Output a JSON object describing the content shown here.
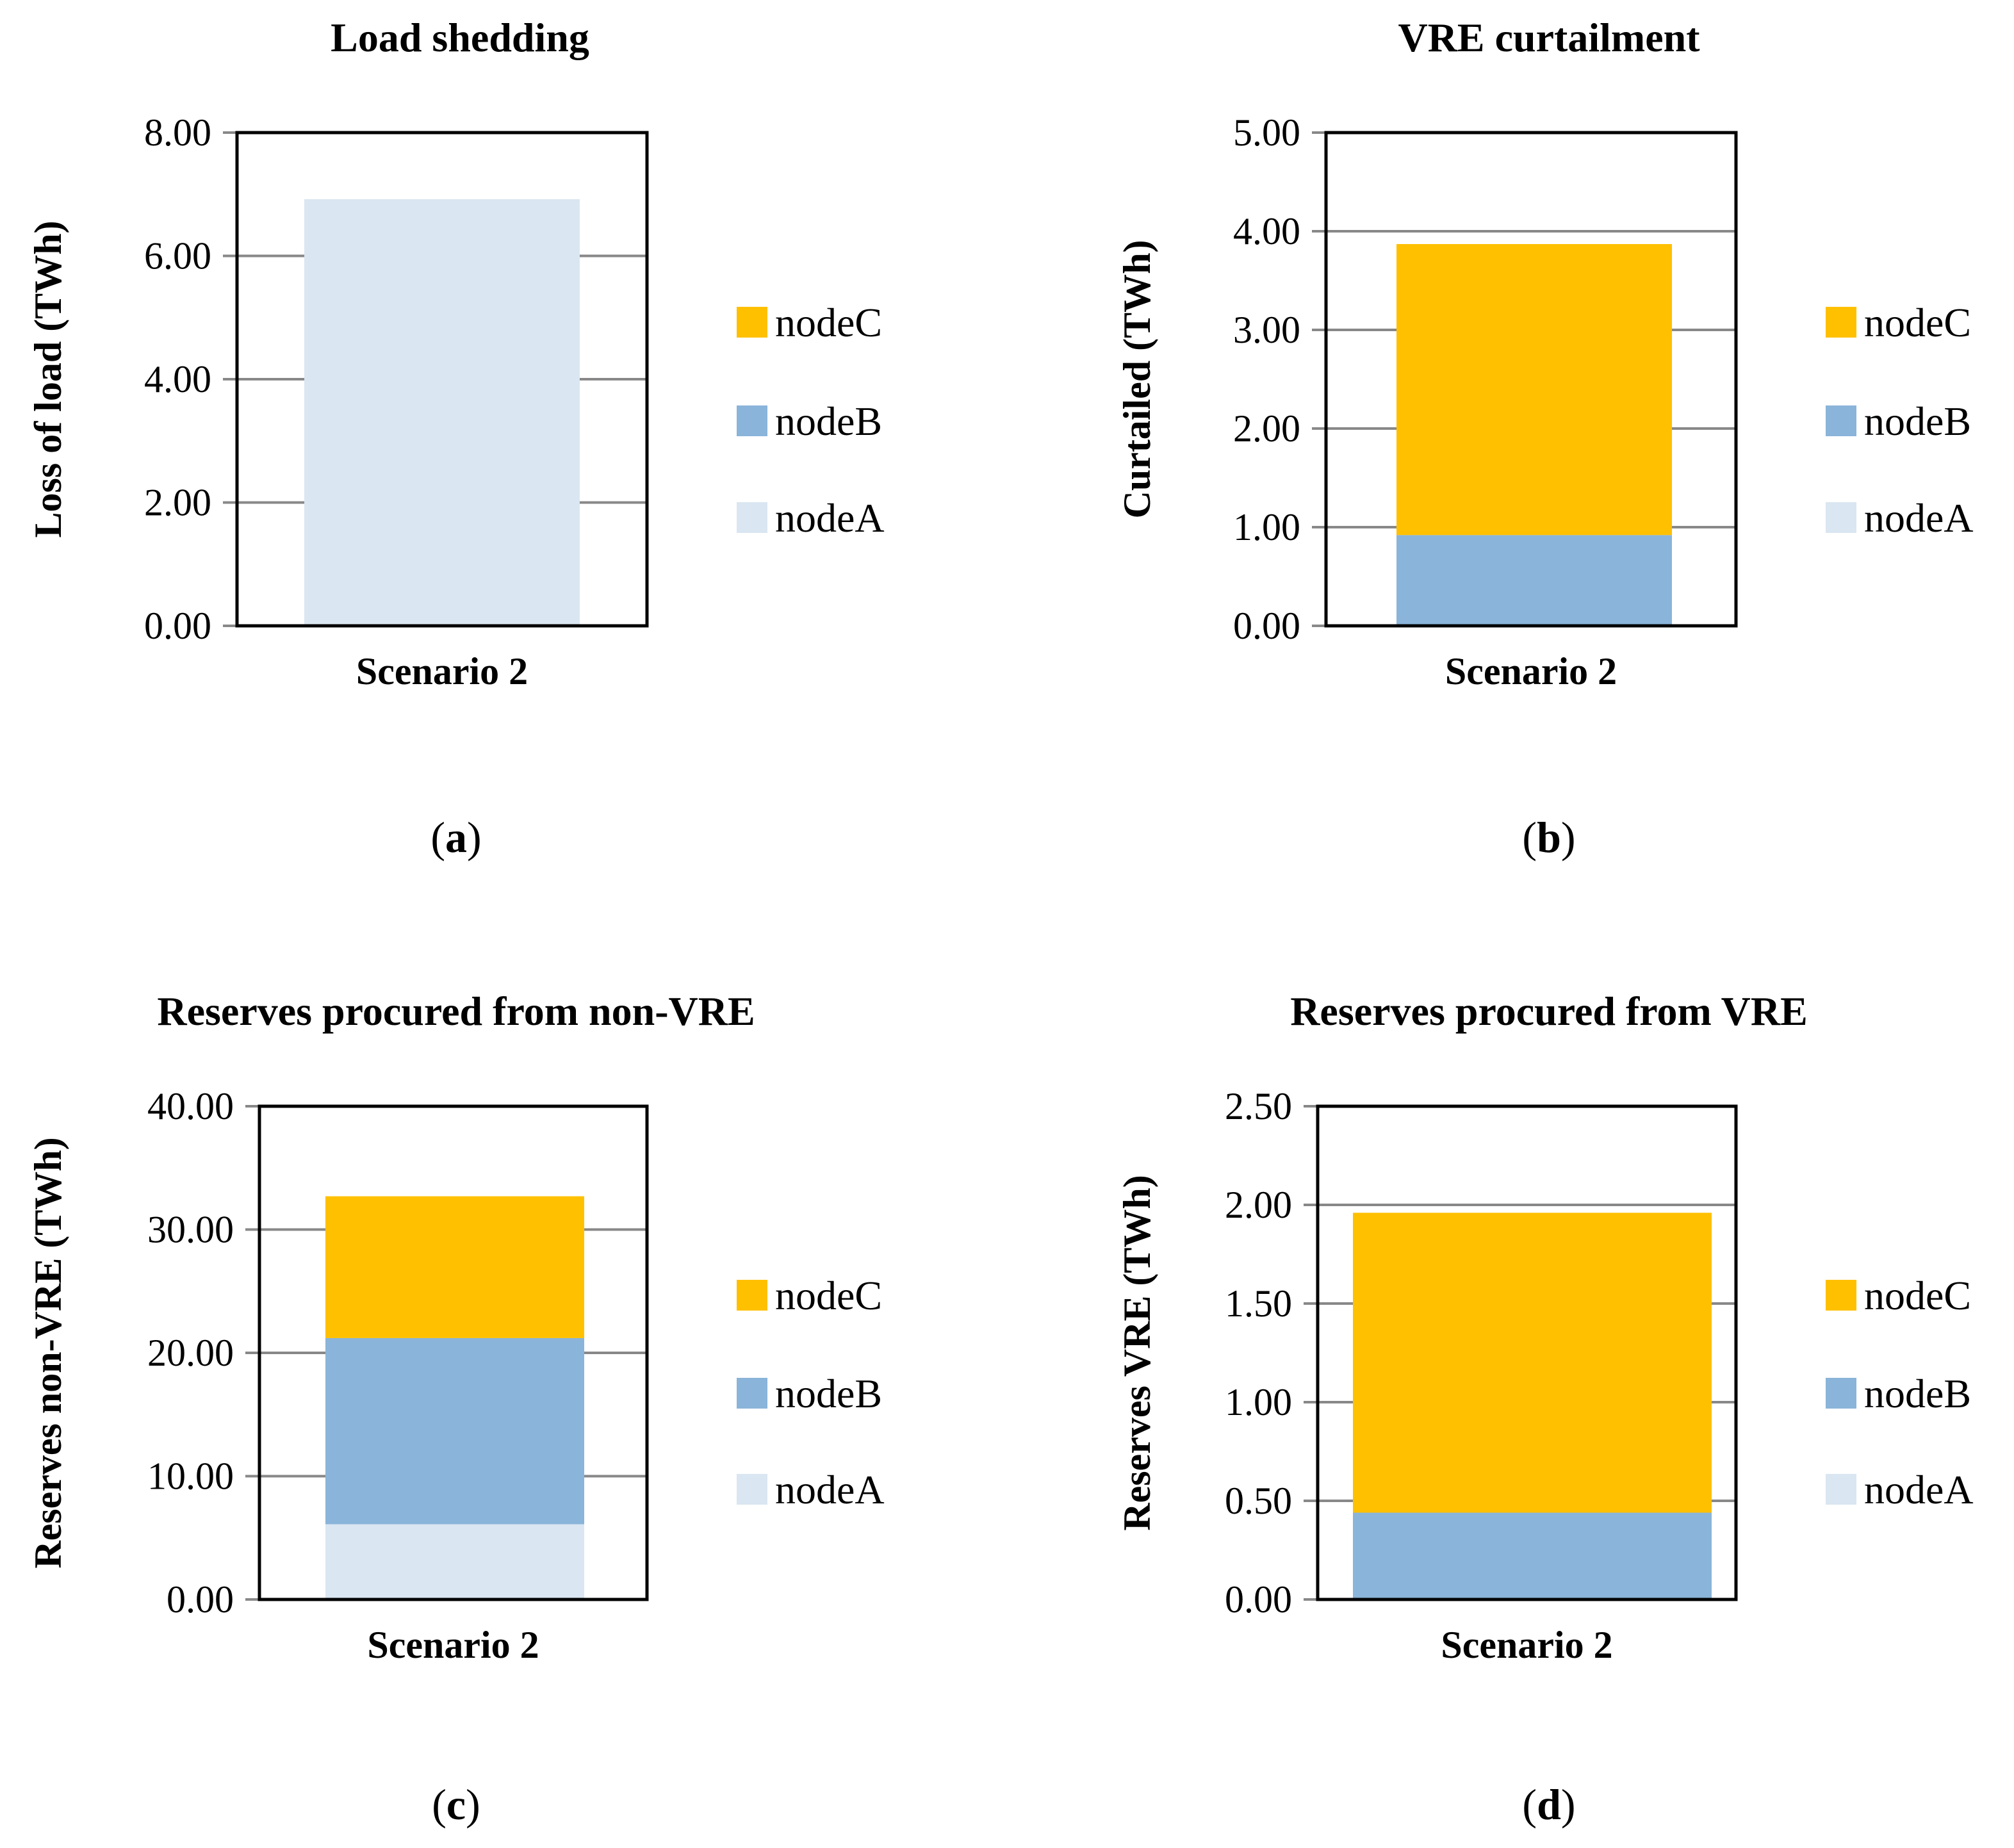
{
  "colors": {
    "nodeA": "#dae6f1",
    "nodeB": "#8ab4d9",
    "nodeC": "#ffc000",
    "grid": "#888888",
    "axis": "#000000"
  },
  "chart_data": [
    {
      "type": "bar",
      "stacked": true,
      "panel": "a",
      "title": "Load shedding",
      "ylabel": "Loss of load (TWh)",
      "xlabel": "",
      "categories": [
        "Scenario 2"
      ],
      "ylim": [
        0,
        8
      ],
      "yticks": [
        "0.00",
        "2.00",
        "4.00",
        "6.00",
        "8.00"
      ],
      "series": [
        {
          "name": "nodeA",
          "values": [
            6.92
          ]
        },
        {
          "name": "nodeB",
          "values": [
            0
          ]
        },
        {
          "name": "nodeC",
          "values": [
            0
          ]
        }
      ],
      "legend": [
        "nodeC",
        "nodeB",
        "nodeA"
      ],
      "legend_position": "right",
      "grid": true
    },
    {
      "type": "bar",
      "stacked": true,
      "panel": "b",
      "title": "VRE curtailment",
      "ylabel": "Curtailed (TWh)",
      "xlabel": "",
      "categories": [
        "Scenario 2"
      ],
      "ylim": [
        0,
        5
      ],
      "yticks": [
        "0.00",
        "1.00",
        "2.00",
        "3.00",
        "4.00",
        "5.00"
      ],
      "series": [
        {
          "name": "nodeA",
          "values": [
            0
          ]
        },
        {
          "name": "nodeB",
          "values": [
            0.92
          ]
        },
        {
          "name": "nodeC",
          "values": [
            2.95
          ]
        }
      ],
      "legend": [
        "nodeC",
        "nodeB",
        "nodeA"
      ],
      "legend_position": "right",
      "grid": true
    },
    {
      "type": "bar",
      "stacked": true,
      "panel": "c",
      "title": "Reserves procured from non-VRE",
      "ylabel": "Reserves non-VRE (TWh)",
      "xlabel": "",
      "categories": [
        "Scenario 2"
      ],
      "ylim": [
        0,
        40
      ],
      "yticks": [
        "0.00",
        "10.00",
        "20.00",
        "30.00",
        "40.00"
      ],
      "series": [
        {
          "name": "nodeA",
          "values": [
            6.1
          ]
        },
        {
          "name": "nodeB",
          "values": [
            15.1
          ]
        },
        {
          "name": "nodeC",
          "values": [
            11.5
          ]
        }
      ],
      "legend": [
        "nodeC",
        "nodeB",
        "nodeA"
      ],
      "legend_position": "right",
      "grid": true
    },
    {
      "type": "bar",
      "stacked": true,
      "panel": "d",
      "title": "Reserves procured from VRE",
      "ylabel": "Reserves VRE (TWh)",
      "xlabel": "",
      "categories": [
        "Scenario 2"
      ],
      "ylim": [
        0,
        2.5
      ],
      "yticks": [
        "0.00",
        "0.50",
        "1.00",
        "1.50",
        "2.00",
        "2.50"
      ],
      "series": [
        {
          "name": "nodeA",
          "values": [
            0
          ]
        },
        {
          "name": "nodeB",
          "values": [
            0.44
          ]
        },
        {
          "name": "nodeC",
          "values": [
            1.52
          ]
        }
      ],
      "legend": [
        "nodeC",
        "nodeB",
        "nodeA"
      ],
      "legend_position": "right",
      "grid": true
    }
  ]
}
